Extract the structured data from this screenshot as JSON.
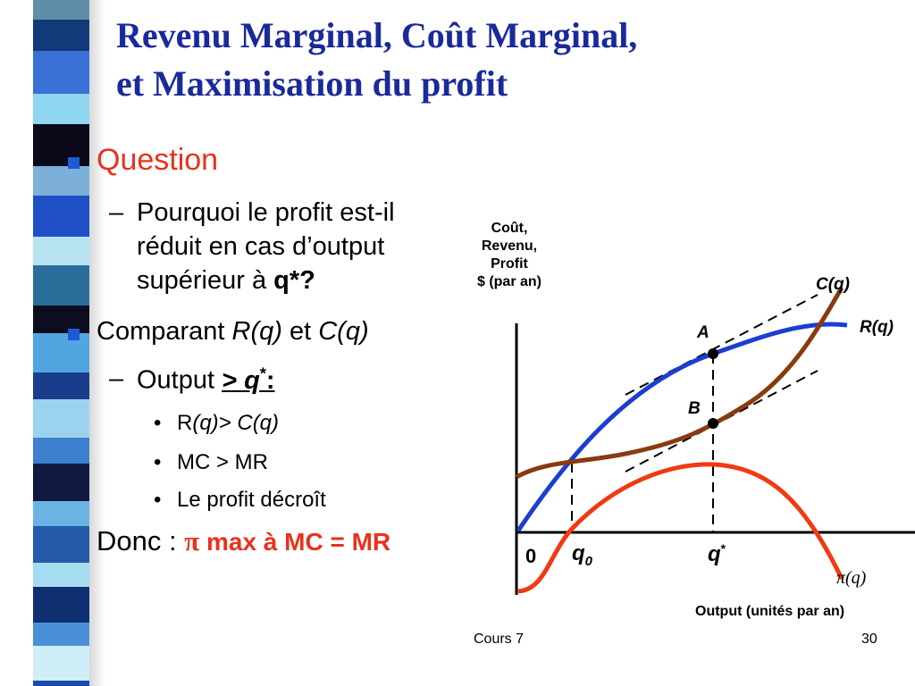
{
  "slide": {
    "title_line1": "Revenu Marginal, Coût Marginal,",
    "title_line2": "et Maximisation du profit",
    "footer_left": "Cours 7",
    "footer_right": "30"
  },
  "content": {
    "question": "Question",
    "q_line1": "Pourquoi le profit est-il",
    "q_line2": "réduit en cas d’output",
    "q_line3_a": "supérieur à ",
    "q_line3_b": "q*?",
    "dash": "–",
    "comparant": "Comparant ",
    "rq": "R(q)",
    "et": " et ",
    "cq": "C(q)",
    "output": "Output ",
    "output_sym": "> q",
    "output_star": "*",
    "output_colon": ":",
    "sub_dot": "•",
    "sub1_a": "R",
    "sub1_b": "(q)> C(q)",
    "sub2": "MC > MR",
    "sub3": "Le profit décroît",
    "donc": "Donc : ",
    "donc_pi": "π",
    "donc_rest": " max à  MC = MR",
    "accent_color": "#e8321c",
    "bullet_color": "#1f59d6"
  },
  "chart_data": {
    "type": "line",
    "ylabel_lines": [
      "Coût,",
      "Revenu,",
      "Profit",
      "$ (par an)"
    ],
    "xlabel": "Output (unités par an)",
    "origin_label": "0",
    "q0_label": "q",
    "q0_sub": "0",
    "qstar_label": "q",
    "qstar_sup": "*",
    "point_a": "A",
    "point_b": "B",
    "series": [
      {
        "name": "R(q)",
        "color": "#1a3fcf"
      },
      {
        "name": "C(q)",
        "color": "#8a3a10"
      },
      {
        "name": "π(q)",
        "color": "#f03a14"
      }
    ],
    "grid": false,
    "legend": "curve-labels"
  }
}
